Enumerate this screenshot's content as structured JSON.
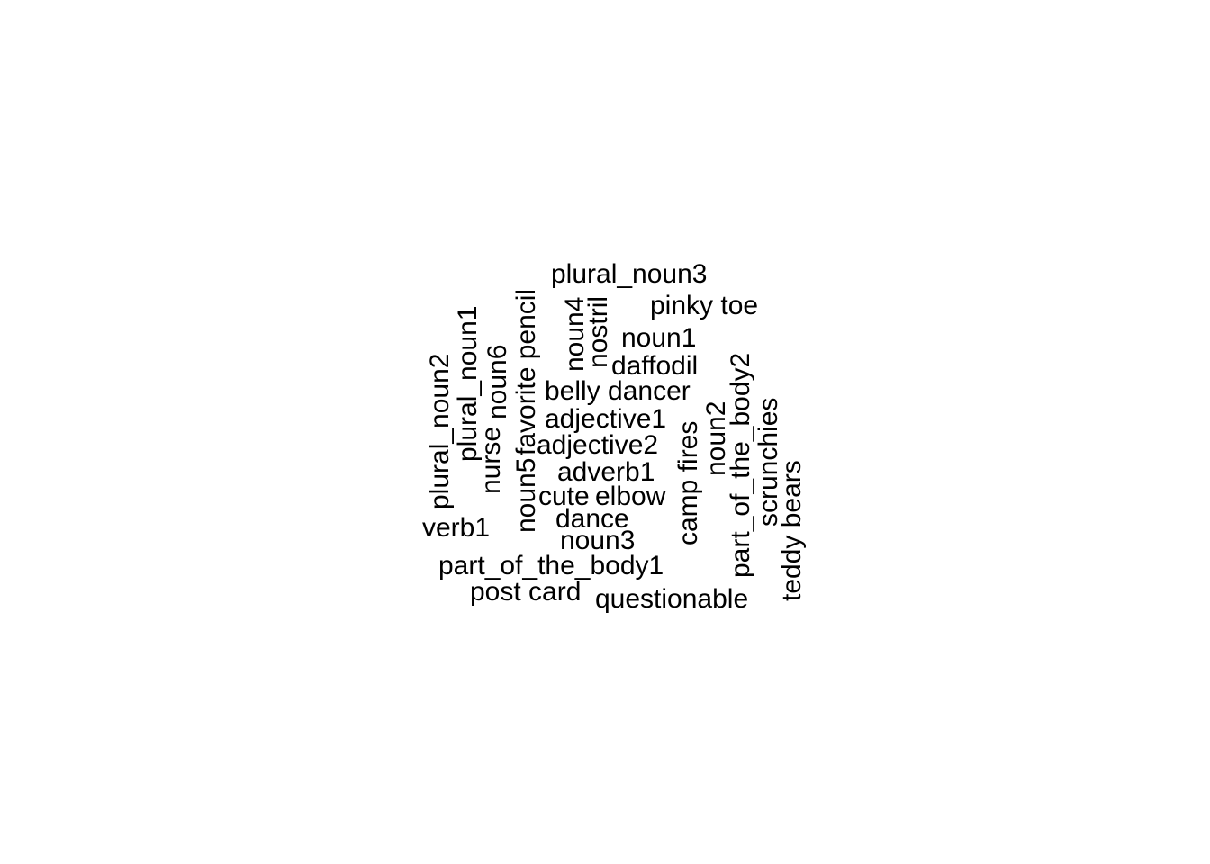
{
  "word_cloud": {
    "words": [
      "plural_noun3",
      "pinky toe",
      "noun1",
      "daffodil",
      "belly dancer",
      "adjective1",
      "adjective2",
      "adverb1",
      "cute",
      "elbow",
      "dance",
      "noun3",
      "verb1",
      "part_of_the_body1",
      "post card",
      "questionable",
      "plural_noun2",
      "plural_noun1",
      "nurse",
      "noun6",
      "noun5",
      "favorite pencil",
      "noun4",
      "nostril",
      "camp fires",
      "noun2",
      "part_of_the_body2",
      "scrunchies",
      "teddy bears"
    ],
    "color": "#000000"
  }
}
